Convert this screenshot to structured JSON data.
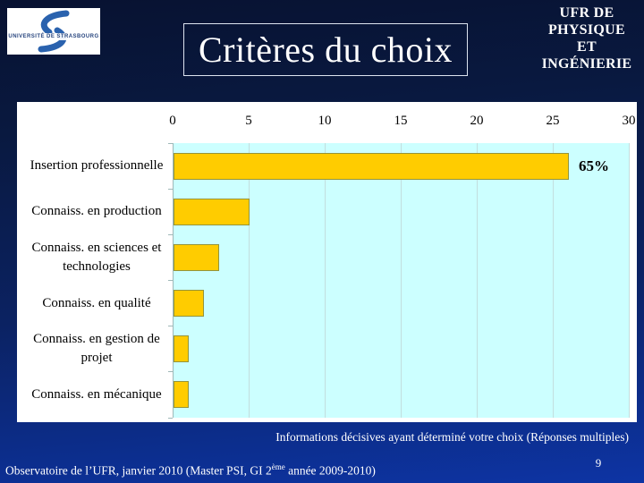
{
  "slide": {
    "logo_text": "UNIVERSITÉ DE STRASBOURG",
    "title": "Critères du choix",
    "header_lines": [
      "UFR DE",
      "PHYSIQUE",
      "ET",
      "INGÉNIERIE"
    ],
    "caption": "Informations décisives ayant déterminé votre choix (Réponses multiples)",
    "footer": {
      "text_before_sup": "Observatoire de l’UFR, janvier 2010 (Master PSI, GI 2",
      "sup": "ème",
      "text_after_sup": " année 2009-2010)"
    },
    "page_number": "9"
  },
  "chart_data": {
    "type": "bar",
    "orientation": "horizontal",
    "title": "",
    "xlabel": "",
    "ylabel": "",
    "categories": [
      "Insertion professionnelle",
      "Connaiss. en production",
      "Connaiss. en sciences et technologies",
      "Connaiss. en qualité",
      "Connaiss. en gestion de projet",
      "Connaiss. en mécanique"
    ],
    "category_lines": [
      "Insertion professionnelle",
      "Connaiss. en production",
      "Connaiss. en sciences et\ntechnologies",
      "Connaiss. en qualité",
      "Connaiss. en gestion de\nprojet",
      "Connaiss. en mécanique"
    ],
    "values": [
      26,
      5,
      3,
      2,
      1,
      1
    ],
    "annotations": [
      {
        "category_index": 0,
        "text": "65%"
      }
    ],
    "xlim": [
      0,
      30
    ],
    "xticks": [
      0,
      5,
      10,
      15,
      20,
      25,
      30
    ],
    "axis_position": "top",
    "grid": true,
    "legend": "none",
    "colors": {
      "bar_fill": "#FFCC00",
      "bar_border": "#94943B",
      "plot_background": "#CCFFFF",
      "chart_background": "#FFFFFF",
      "gridline": "#C2DEDE",
      "annotation_text": "#000000"
    }
  }
}
